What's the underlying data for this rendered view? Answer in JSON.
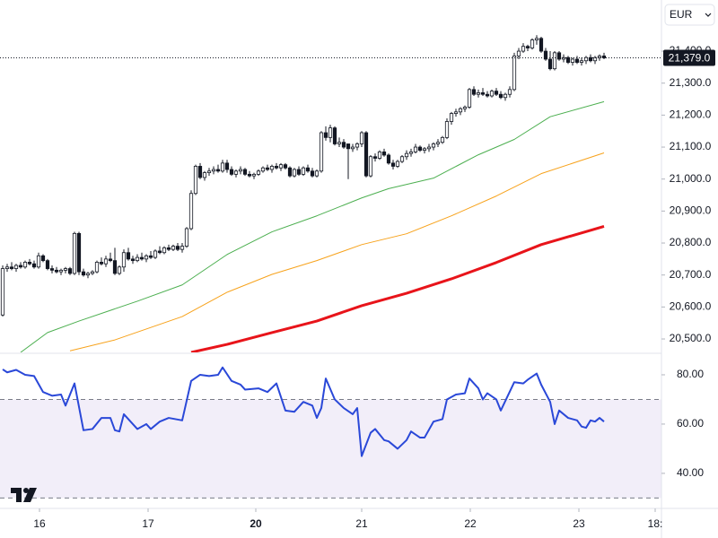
{
  "currency": "EUR",
  "chart_data": [
    {
      "type": "candlestick",
      "open": [
        20575,
        20720,
        20725,
        20720,
        20730,
        20725,
        20740,
        20735,
        20725,
        20760,
        20745,
        20720,
        20715,
        20710,
        20715,
        20720,
        20705,
        20830,
        20710,
        20700,
        20705,
        20710,
        20740,
        20735,
        20750,
        20745,
        20705,
        20725,
        20770,
        20750,
        20745,
        20755,
        20750,
        20760,
        20755,
        20775,
        20770,
        20785,
        20780,
        20790,
        20780,
        20790,
        20845,
        20955,
        21040,
        21005,
        21020,
        21025,
        21030,
        21025,
        21050,
        21030,
        21015,
        21025,
        21030,
        21015,
        21010,
        21015,
        21025,
        21035,
        21030,
        21040,
        21035,
        21045,
        21035,
        21010,
        21030,
        21015,
        21035,
        21025,
        21010,
        21025,
        21145,
        21130,
        21160,
        21110,
        21115,
        21110,
        21095,
        21100,
        21110,
        21145,
        21010,
        21070,
        21065,
        21085,
        21075,
        21050,
        21040,
        21055,
        21070,
        21080,
        21085,
        21100,
        21090,
        21095,
        21100,
        21110,
        21115,
        21130,
        21180,
        21205,
        21210,
        21220,
        21225,
        21280,
        21265,
        21270,
        21265,
        21260,
        21275,
        21265,
        21255,
        21265,
        21280,
        21385,
        21400,
        21415,
        21410,
        21435,
        21440,
        21400,
        21375,
        21345,
        21395,
        21375,
        21380,
        21365,
        21375,
        21365,
        21370,
        21380,
        21370,
        21380,
        21385
      ],
      "high": [
        20730,
        20735,
        20740,
        20735,
        20740,
        20745,
        20750,
        20745,
        20770,
        20765,
        20750,
        20730,
        20725,
        20720,
        20725,
        20725,
        20835,
        20835,
        20720,
        20710,
        20715,
        20745,
        20755,
        20760,
        20770,
        20785,
        20730,
        20780,
        20785,
        20760,
        20765,
        20770,
        20765,
        20775,
        20780,
        20790,
        20790,
        20795,
        20795,
        20800,
        20800,
        20850,
        20965,
        21045,
        21050,
        21025,
        21035,
        21040,
        21045,
        21060,
        21060,
        21040,
        21030,
        21040,
        21035,
        21025,
        21020,
        21030,
        21040,
        21045,
        21045,
        21050,
        21050,
        21050,
        21040,
        21035,
        21040,
        21040,
        21045,
        21035,
        21030,
        21150,
        21165,
        21170,
        21165,
        21130,
        21125,
        21110,
        21110,
        21115,
        21150,
        21150,
        21075,
        21080,
        21090,
        21095,
        21080,
        21060,
        21060,
        21075,
        21090,
        21095,
        21110,
        21105,
        21100,
        21110,
        21115,
        21125,
        21135,
        21190,
        21210,
        21220,
        21225,
        21230,
        21285,
        21290,
        21280,
        21285,
        21275,
        21280,
        21285,
        21275,
        21270,
        21290,
        21395,
        21410,
        21425,
        21420,
        21440,
        21450,
        21445,
        21410,
        21400,
        21400,
        21400,
        21390,
        21385,
        21380,
        21385,
        21380,
        21385,
        21390,
        21385,
        21390,
        21395
      ],
      "low": [
        20570,
        20710,
        20715,
        20710,
        20720,
        20720,
        20730,
        20720,
        20720,
        20740,
        20715,
        20705,
        20705,
        20700,
        20705,
        20700,
        20700,
        20700,
        20695,
        20690,
        20700,
        20705,
        20730,
        20725,
        20740,
        20700,
        20700,
        20710,
        20745,
        20735,
        20740,
        20745,
        20740,
        20750,
        20750,
        20765,
        20765,
        20775,
        20775,
        20775,
        20770,
        20785,
        20840,
        20950,
        21000,
        20995,
        21010,
        21015,
        21020,
        21020,
        21020,
        21010,
        21005,
        21015,
        21010,
        21005,
        21000,
        21010,
        21020,
        21025,
        21020,
        21030,
        21025,
        21030,
        21005,
        21005,
        21010,
        21010,
        21020,
        21005,
        21005,
        21020,
        21120,
        21115,
        21105,
        21100,
        21095,
        21000,
        21085,
        21090,
        21100,
        21005,
        21005,
        21055,
        21060,
        21070,
        21045,
        21030,
        21035,
        21050,
        21060,
        21070,
        21080,
        21085,
        21080,
        21085,
        21090,
        21100,
        21110,
        21125,
        21170,
        21195,
        21200,
        21210,
        21220,
        21260,
        21255,
        21260,
        21255,
        21255,
        21260,
        21250,
        21245,
        21255,
        21275,
        21375,
        21395,
        21400,
        21405,
        21420,
        21395,
        21370,
        21340,
        21340,
        21370,
        21365,
        21360,
        21355,
        21360,
        21355,
        21360,
        21365,
        21360,
        21370,
        21375
      ],
      "close": [
        20720,
        20725,
        20720,
        20730,
        20725,
        20740,
        20735,
        20725,
        20760,
        20745,
        20720,
        20715,
        20710,
        20715,
        20720,
        20705,
        20830,
        20710,
        20700,
        20705,
        20710,
        20740,
        20735,
        20750,
        20745,
        20705,
        20725,
        20770,
        20750,
        20745,
        20755,
        20750,
        20760,
        20755,
        20775,
        20770,
        20785,
        20780,
        20790,
        20780,
        20790,
        20845,
        20955,
        21040,
        21005,
        21020,
        21025,
        21030,
        21025,
        21050,
        21030,
        21015,
        21025,
        21030,
        21015,
        21010,
        21015,
        21025,
        21035,
        21030,
        21040,
        21035,
        21045,
        21035,
        21010,
        21030,
        21015,
        21035,
        21025,
        21010,
        21025,
        21145,
        21130,
        21160,
        21110,
        21115,
        21100,
        21095,
        21100,
        21110,
        21145,
        21010,
        21070,
        21065,
        21085,
        21075,
        21050,
        21040,
        21055,
        21070,
        21080,
        21085,
        21100,
        21090,
        21095,
        21100,
        21110,
        21115,
        21130,
        21180,
        21205,
        21210,
        21220,
        21225,
        21280,
        21265,
        21270,
        21265,
        21260,
        21275,
        21265,
        21255,
        21265,
        21280,
        21385,
        21400,
        21415,
        21410,
        21435,
        21440,
        21400,
        21375,
        21345,
        21395,
        21375,
        21380,
        21365,
        21375,
        21365,
        21370,
        21380,
        21370,
        21380,
        21385,
        21379
      ],
      "up_color": "#ffffff",
      "down_color": "#131722",
      "wick_color": "#131722",
      "series": [
        {
          "color": "#4caf50",
          "width": 1,
          "x": [
            4,
            10,
            17,
            30,
            40,
            50,
            60,
            70,
            80,
            86,
            96,
            106,
            114,
            122,
            134
          ],
          "values": [
            20458,
            20520,
            20556,
            20618,
            20669,
            20764,
            20835,
            20885,
            20941,
            20970,
            21003,
            21076,
            21124,
            21195,
            21242
          ]
        },
        {
          "color": "#f7a21b",
          "width": 1,
          "x": [
            15,
            25,
            40,
            50,
            60,
            70,
            80,
            90,
            100,
            110,
            120,
            134
          ],
          "values": [
            20463,
            20497,
            20570,
            20646,
            20702,
            20745,
            20795,
            20829,
            20885,
            20947,
            21017,
            21082
          ]
        },
        {
          "color": "#e8141a",
          "width": 3,
          "x": [
            42,
            50,
            60,
            70,
            80,
            90,
            100,
            110,
            120,
            134
          ],
          "values": [
            20458,
            20483,
            20520,
            20556,
            20604,
            20643,
            20688,
            20739,
            20795,
            20852
          ]
        }
      ],
      "last": {
        "value": 21379,
        "label": "21,379.0"
      },
      "xlim": [
        -0.6,
        146.8
      ],
      "xticks": [
        {
          "value": 8.2,
          "label": "16"
        },
        {
          "value": 32.4,
          "label": "17"
        },
        {
          "value": 56.4,
          "label": "20"
        },
        {
          "value": 80,
          "label": "21"
        },
        {
          "value": 104.2,
          "label": "22"
        },
        {
          "value": 128.4,
          "label": "23"
        },
        {
          "value": 145.4,
          "label": "18:"
        }
      ],
      "ylim": [
        20458,
        21560
      ],
      "yticks": [
        {
          "value": 20500,
          "label": "20,500.0"
        },
        {
          "value": 20600,
          "label": "20,600.0"
        },
        {
          "value": 20700,
          "label": "20,700.0"
        },
        {
          "value": 20800,
          "label": "20,800.0"
        },
        {
          "value": 20900,
          "label": "20,900.0"
        },
        {
          "value": 21000,
          "label": "21,000.0"
        },
        {
          "value": 21100,
          "label": "21,100.0"
        },
        {
          "value": 21200,
          "label": "21,200.0"
        },
        {
          "value": 21300,
          "label": "21,300.0"
        },
        {
          "value": 21400,
          "label": "21,400.0"
        }
      ]
    },
    {
      "type": "line",
      "series": [
        {
          "color": "#2a48d8",
          "width": 2,
          "x": [
            0,
            1,
            3,
            5,
            7,
            9,
            11,
            13,
            14,
            16,
            18,
            20,
            22,
            24,
            25,
            26,
            27,
            30,
            32,
            33,
            35,
            37,
            40,
            42,
            44,
            46,
            48,
            49,
            51,
            53,
            54,
            57,
            59,
            61,
            63,
            65,
            67,
            69,
            70,
            71,
            72,
            74,
            76,
            78,
            79,
            80,
            82,
            83,
            85,
            86,
            88,
            90,
            91,
            93,
            94,
            96,
            98,
            99,
            101,
            103,
            104,
            106,
            107,
            108,
            110,
            111,
            114,
            116,
            117,
            119,
            120,
            122,
            123,
            124,
            126,
            128,
            129,
            130,
            131,
            132,
            133,
            134
          ],
          "values": [
            82.2,
            81,
            82,
            80,
            79.5,
            73,
            71.5,
            72,
            67.5,
            76.5,
            57.5,
            58,
            62.5,
            62.5,
            57.5,
            57,
            64,
            58,
            60,
            58,
            61,
            62.5,
            61.5,
            77.5,
            80,
            79.5,
            80,
            83,
            77.5,
            76,
            74,
            74.5,
            73,
            76.5,
            65.5,
            65,
            69,
            67.5,
            62.5,
            66.5,
            78.5,
            70,
            66.5,
            64,
            66.5,
            47,
            56.5,
            58,
            53.5,
            53,
            50,
            53.5,
            57,
            54.5,
            54.5,
            61,
            62,
            70,
            72,
            72.5,
            78.5,
            74.5,
            70,
            72.5,
            70,
            65.5,
            77,
            76.5,
            78,
            80.5,
            76,
            69,
            60,
            65.5,
            62.5,
            61.5,
            59,
            58.5,
            61.5,
            61,
            62.5,
            61
          ]
        }
      ],
      "band": [
        30,
        70
      ],
      "band_color": "#7e57c2",
      "xlim": [
        -0.6,
        146.8
      ],
      "ylim": [
        26.5,
        88
      ],
      "yticks": [
        {
          "value": 40,
          "label": "40.00"
        },
        {
          "value": 60,
          "label": "60.00"
        },
        {
          "value": 80,
          "label": "80.00"
        }
      ]
    }
  ]
}
